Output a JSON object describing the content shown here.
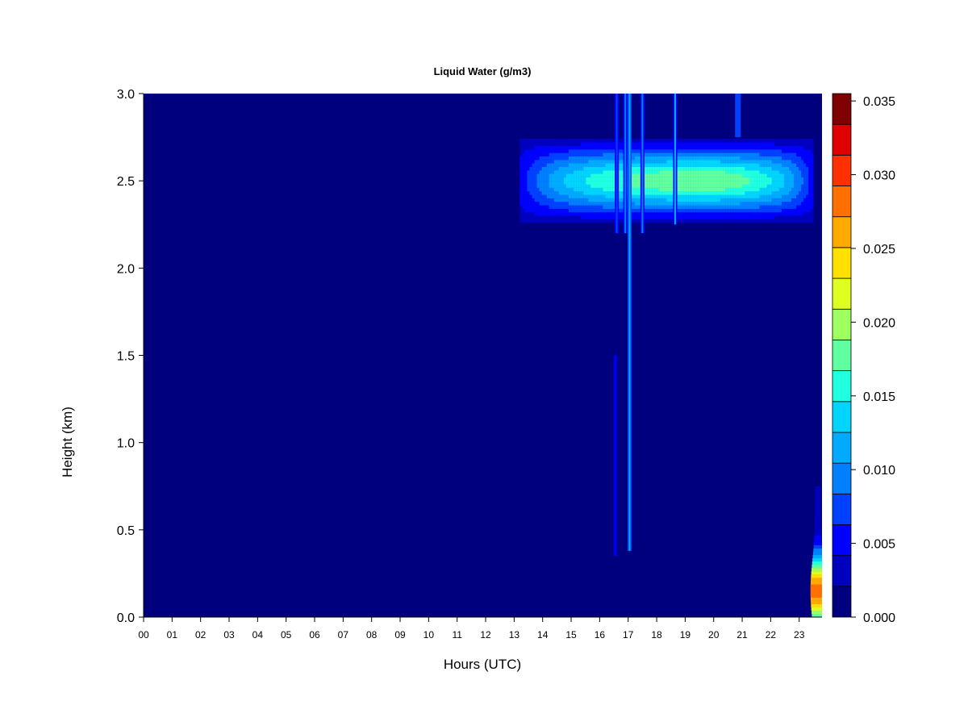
{
  "chart_data": {
    "type": "heatmap",
    "title": "Liquid Water (g/m3)",
    "xlabel": "Hours (UTC)",
    "ylabel": "Height (km)",
    "xlim": [
      0,
      23.8
    ],
    "ylim": [
      0,
      3.0
    ],
    "x_tick_values": [
      0,
      1,
      2,
      3,
      4,
      5,
      6,
      7,
      8,
      9,
      10,
      11,
      12,
      13,
      14,
      15,
      16,
      17,
      18,
      19,
      20,
      21,
      22,
      23
    ],
    "x_tick_labels": [
      "00",
      "01",
      "02",
      "03",
      "04",
      "05",
      "06",
      "07",
      "08",
      "09",
      "10",
      "11",
      "12",
      "13",
      "14",
      "15",
      "16",
      "17",
      "18",
      "19",
      "20",
      "21",
      "22",
      "23"
    ],
    "y_ticks": [
      {
        "value": 0.0,
        "label": "0.0"
      },
      {
        "value": 0.5,
        "label": "0.5"
      },
      {
        "value": 1.0,
        "label": "1.0"
      },
      {
        "value": 1.5,
        "label": "1.5"
      },
      {
        "value": 2.0,
        "label": "2.0"
      },
      {
        "value": 2.5,
        "label": "2.5"
      },
      {
        "value": 3.0,
        "label": "3.0"
      }
    ],
    "colorbar": {
      "levels": [
        0.0,
        0.0025,
        0.005,
        0.0075,
        0.01,
        0.0125,
        0.015,
        0.0175,
        0.02,
        0.0225,
        0.025,
        0.0275,
        0.03,
        0.0325,
        0.0355
      ],
      "colors": [
        "#00007f",
        "#0000bf",
        "#0000ff",
        "#0040ff",
        "#0080ff",
        "#00aaff",
        "#00d4ff",
        "#20ffdf",
        "#60ff9f",
        "#9fff60",
        "#dfff20",
        "#ffe000",
        "#ffaa00",
        "#ff7000",
        "#ff3000",
        "#df0000",
        "#7f0000"
      ],
      "tick_values": [
        0.0,
        0.005,
        0.01,
        0.015,
        0.02,
        0.025,
        0.03,
        0.035
      ],
      "tick_labels": [
        "0.000",
        "0.005",
        "0.010",
        "0.015",
        "0.020",
        "0.025",
        "0.030",
        "0.035"
      ]
    },
    "background_value": 0.0,
    "features": [
      {
        "kind": "cloud_layer",
        "x_start": 13.2,
        "x_end": 23.5,
        "y_center": 2.5,
        "y_halfwidth": 0.24,
        "peak_value": 0.017,
        "peak_x": 19.5
      },
      {
        "kind": "streak",
        "x": 16.6,
        "y_bottom": 2.2,
        "y_top": 3.0,
        "value": 0.006
      },
      {
        "kind": "streak",
        "x": 17.05,
        "y_bottom": 0.38,
        "y_top": 3.0,
        "value": 0.012
      },
      {
        "kind": "streak",
        "x": 16.9,
        "y_bottom": 2.2,
        "y_top": 3.0,
        "value": 0.009
      },
      {
        "kind": "streak",
        "x": 17.5,
        "y_bottom": 2.2,
        "y_top": 3.0,
        "value": 0.008
      },
      {
        "kind": "streak",
        "x": 18.65,
        "y_bottom": 2.25,
        "y_top": 3.0,
        "value": 0.011
      },
      {
        "kind": "streak",
        "x": 16.55,
        "y_bottom": 0.35,
        "y_top": 1.5,
        "value": 0.004
      },
      {
        "kind": "patch",
        "x_start": 20.75,
        "x_end": 20.95,
        "y_bottom": 2.75,
        "y_top": 3.0,
        "value": 0.007
      },
      {
        "kind": "fog",
        "x": 23.65,
        "y_bottom": 0.0,
        "y_top": 0.75,
        "peak_value": 0.031,
        "peak_y": 0.15
      }
    ]
  }
}
